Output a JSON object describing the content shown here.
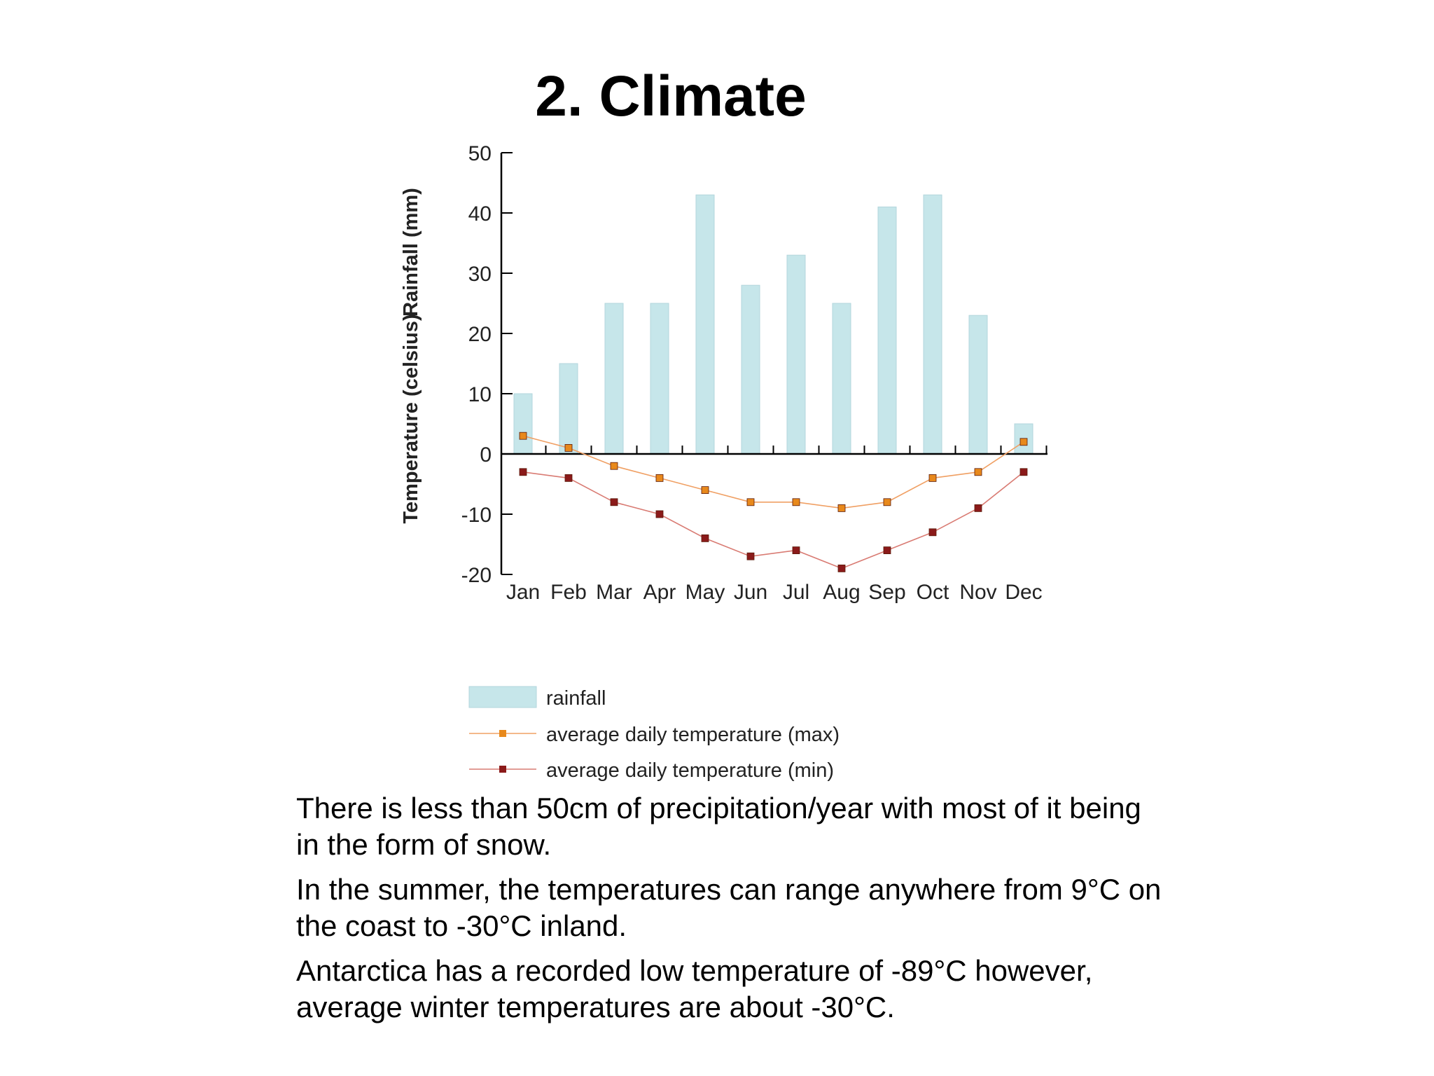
{
  "slide": {
    "title": "2. Climate"
  },
  "chart_data": {
    "type": "bar",
    "categories": [
      "Jan",
      "Feb",
      "Mar",
      "Apr",
      "May",
      "Jun",
      "Jul",
      "Aug",
      "Sep",
      "Oct",
      "Nov",
      "Dec"
    ],
    "ylabel_left": "Temperature (celsius)",
    "ylabel_right": "Rainfall (mm)",
    "ylim": [
      -20,
      50
    ],
    "yticks": [
      "50",
      "40",
      "30",
      "20",
      "10",
      "0",
      "-10",
      "-20"
    ],
    "ytick_values": [
      50,
      40,
      30,
      20,
      10,
      0,
      -10,
      -20
    ],
    "series": [
      {
        "name": "rainfall",
        "kind": "bar",
        "color": "#c6e6ea",
        "values": [
          10,
          15,
          25,
          25,
          43,
          28,
          33,
          25,
          41,
          43,
          23,
          5
        ]
      },
      {
        "name": "average daily temperature (max)",
        "kind": "line",
        "color": "#f0a064",
        "marker_color": "#e8891c",
        "values": [
          3,
          1,
          -2,
          -4,
          -6,
          -8,
          -8,
          -9,
          -8,
          -4,
          -3,
          2
        ]
      },
      {
        "name": "average daily temperature (min)",
        "kind": "line",
        "color": "#d97b73",
        "marker_color": "#8b1a1a",
        "values": [
          -3,
          -4,
          -8,
          -10,
          -14,
          -17,
          -16,
          -19,
          -16,
          -13,
          -9,
          -3
        ]
      }
    ],
    "legend": [
      {
        "label": "rainfall"
      },
      {
        "label": "average daily temperature (max)"
      },
      {
        "label": "average daily temperature (min)"
      }
    ]
  },
  "body": {
    "paragraphs": [
      "There is less than 50cm of precipitation/year with most of it being in the form of snow.",
      "In the summer, the temperatures can range anywhere from 9°C on the coast to -30°C inland.",
      "Antarctica has a recorded low temperature of -89°C however, average winter temperatures are about -30°C."
    ]
  }
}
